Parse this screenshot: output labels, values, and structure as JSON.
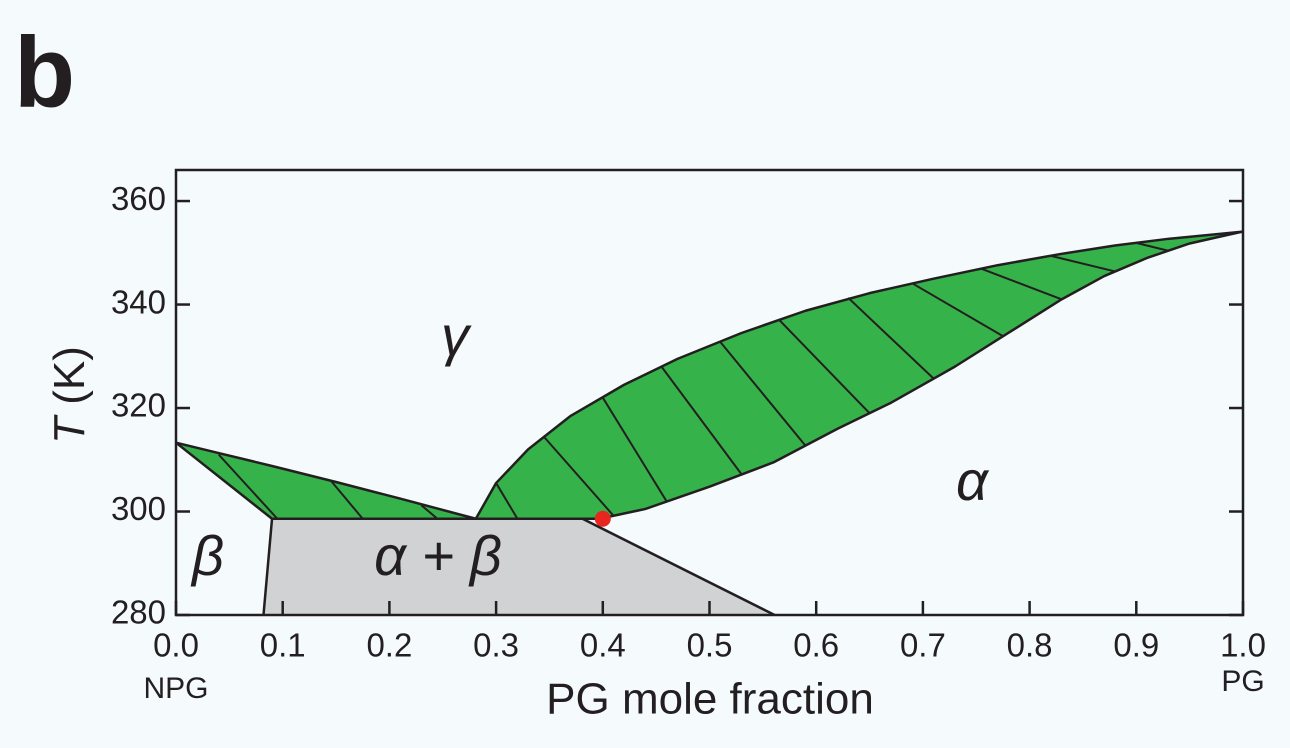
{
  "panel_label": "b",
  "chart_data": {
    "type": "line",
    "xlabel": "PG mole fraction",
    "ylabel_symbol": "T",
    "ylabel_unit": "(K)",
    "x_end_labels": [
      "NPG",
      "PG"
    ],
    "xlim": [
      0,
      1
    ],
    "ylim": [
      280,
      366
    ],
    "xticks": [
      {
        "value": 0,
        "label": "0.0"
      },
      0.1,
      0.2,
      0.3,
      0.4,
      0.5,
      0.6,
      0.7,
      0.8,
      0.9,
      {
        "value": 1,
        "label": "1.0"
      }
    ],
    "yticks": [
      280,
      300,
      320,
      340,
      360
    ],
    "line_color": "#231f20",
    "series": [
      {
        "color": "#36b24a",
        "x": [
          0.281,
          0.3,
          0.33,
          0.37,
          0.42,
          0.47,
          0.53,
          0.59,
          0.65,
          0.71,
          0.77,
          0.83,
          0.88,
          0.93,
          1.0
        ],
        "values": [
          298.6,
          305.5,
          312,
          318.5,
          324.5,
          329.5,
          334.5,
          338.8,
          342.2,
          345,
          347.6,
          349.8,
          351.4,
          352.7,
          354.1
        ]
      },
      {
        "x": [
          0.281,
          0.397,
          0.44,
          0.5,
          0.56,
          0.62,
          0.67,
          0.73,
          0.78,
          0.83,
          0.87,
          0.91,
          0.95,
          0.98,
          1.0
        ],
        "values": [
          298.6,
          298.6,
          300.5,
          304.8,
          309.5,
          316,
          321,
          328,
          334.5,
          341,
          345.5,
          349,
          351.8,
          353.2,
          354.1
        ]
      },
      {
        "color": "#36b24a",
        "x": [
          0,
          0.04,
          0.09,
          0.15,
          0.21,
          0.281
        ],
        "values": [
          313.3,
          311.3,
          308.8,
          305.7,
          302.5,
          298.6
        ]
      },
      {
        "x": [
          0,
          0.09,
          0.281
        ],
        "values": [
          313.3,
          298.6,
          298.6
        ]
      },
      {
        "color": "#d1d2d4",
        "x": [
          0.082,
          0.09,
          0.381,
          0.561
        ],
        "values": [
          280,
          298.6,
          298.6,
          280
        ]
      }
    ],
    "tie_lines": [
      {
        "x": [
          0.04,
          0.095
        ],
        "values": [
          311.0,
          298.6
        ]
      },
      {
        "x": [
          0.145,
          0.175
        ],
        "values": [
          306.0,
          298.6
        ]
      },
      {
        "x": [
          0.23,
          0.245
        ],
        "values": [
          301.2,
          298.6
        ]
      },
      {
        "x": [
          0.3,
          0.32
        ],
        "values": [
          305.5,
          298.6
        ]
      },
      {
        "x": [
          0.345,
          0.41
        ],
        "values": [
          314.4,
          299.2
        ]
      },
      {
        "x": [
          0.4,
          0.46
        ],
        "values": [
          322,
          301.9
        ]
      },
      {
        "x": [
          0.455,
          0.53
        ],
        "values": [
          328,
          307.2
        ]
      },
      {
        "x": [
          0.51,
          0.59
        ],
        "values": [
          332.8,
          312.7
        ]
      },
      {
        "x": [
          0.565,
          0.65
        ],
        "values": [
          337.1,
          319
        ]
      },
      {
        "x": [
          0.63,
          0.71
        ],
        "values": [
          341.3,
          325.7
        ]
      },
      {
        "x": [
          0.69,
          0.775
        ],
        "values": [
          344.1,
          333.9
        ]
      },
      {
        "x": [
          0.755,
          0.83
        ],
        "values": [
          346.9,
          341
        ]
      },
      {
        "x": [
          0.82,
          0.88
        ],
        "values": [
          349.4,
          346.4
        ]
      },
      {
        "x": [
          0.9,
          0.93
        ],
        "values": [
          351.9,
          350.4
        ]
      }
    ],
    "points": [
      {
        "x": 0.4,
        "value": 298.6,
        "color": "#e8251f"
      }
    ],
    "annotations": [
      "γ",
      "α",
      "α + β",
      "β"
    ]
  }
}
